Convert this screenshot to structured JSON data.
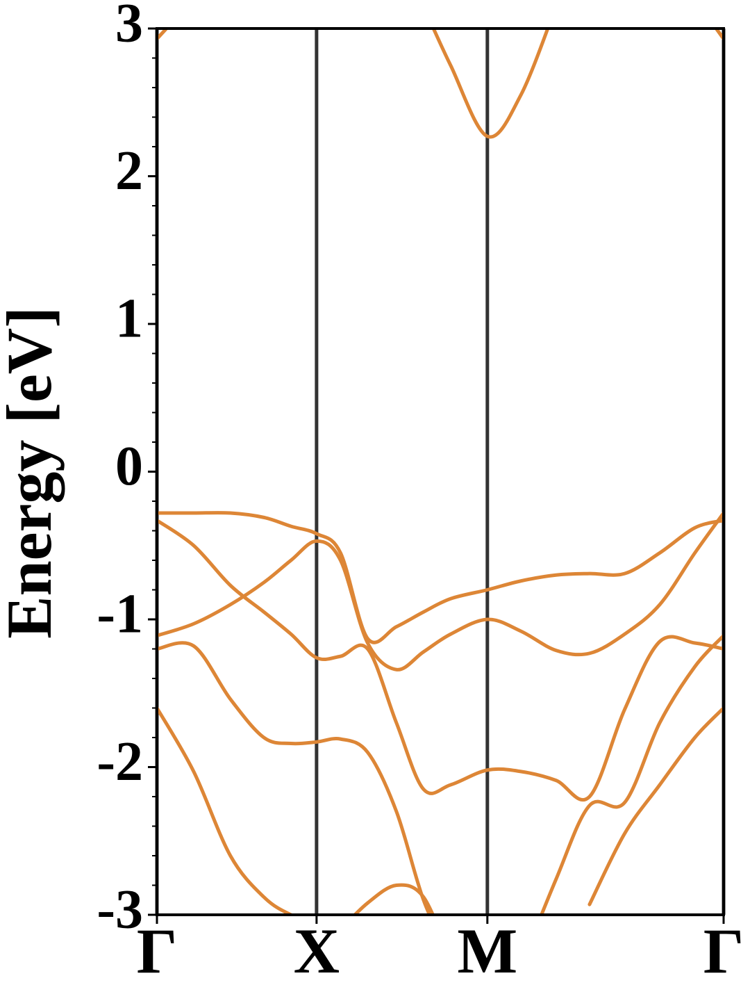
{
  "chart_data": {
    "type": "line",
    "ylabel": "Energy [eV]",
    "x": [
      0,
      0.23,
      0.46,
      0.67,
      0.84,
      1,
      1.15,
      1.32,
      1.5,
      1.67,
      1.84,
      2.07,
      2.28,
      2.5,
      2.71,
      2.93,
      3.15,
      3.37,
      3.55
    ],
    "series": [
      {
        "color": "#dd8636",
        "values": [
          -0.28,
          -0.28,
          -0.28,
          -0.31,
          -0.37,
          -0.42,
          -0.55,
          -1.13,
          -1.05,
          -0.95,
          -0.86,
          -0.8,
          -0.74,
          -0.7,
          -0.69,
          -0.69,
          -0.55,
          -0.38,
          -0.33
        ]
      },
      {
        "color": "#dd8636",
        "values": [
          -0.33,
          -0.5,
          -0.77,
          -0.95,
          -1.1,
          -1.26,
          -1.25,
          -1.2,
          -1.7,
          -2.15,
          -2.12,
          -2.02,
          -2.03,
          -2.09,
          -2.2,
          -1.61,
          -1.15,
          -1.16,
          -1.2
        ]
      },
      {
        "color": "#dd8636",
        "values": [
          -1.11,
          -1.03,
          -0.9,
          -0.75,
          -0.6,
          -0.47,
          -0.6,
          -1.16,
          -1.34,
          -1.22,
          -1.1,
          -1.0,
          -1.08,
          -1.21,
          -1.23,
          -1.1,
          -0.9,
          -0.55,
          -0.28
        ]
      },
      {
        "color": "#dd8636",
        "values": [
          -1.2,
          -1.18,
          -1.54,
          -1.8,
          -1.84,
          -1.83,
          -1.81,
          -1.9,
          -2.3,
          -2.9,
          -3.3,
          null,
          -3.35,
          -2.76,
          -2.26,
          -2.24,
          -1.7,
          -1.32,
          -1.11
        ]
      },
      {
        "color": "#dd8636",
        "values": [
          -1.6,
          -2.03,
          -2.6,
          -2.88,
          -3.0,
          -3.05,
          null,
          null,
          null,
          null,
          null,
          null,
          null,
          null,
          -2.93,
          -2.45,
          -2.12,
          -1.8,
          -1.6
        ]
      },
      {
        "color": "#dd8636",
        "values": [
          null,
          null,
          null,
          null,
          null,
          null,
          -3.1,
          -2.92,
          -2.8,
          -2.88,
          -3.3,
          null,
          null,
          null,
          null,
          null,
          null,
          null,
          null
        ]
      },
      {
        "color": "#dd8636",
        "values": [
          2.93,
          3.2,
          null,
          null,
          null,
          null,
          null,
          null,
          null,
          3.15,
          2.75,
          2.27,
          2.55,
          3.15,
          null,
          null,
          null,
          3.2,
          2.93
        ]
      }
    ],
    "xlim": [
      0,
      3.55
    ],
    "xticks": [
      {
        "value": 0,
        "label": "Γ"
      },
      {
        "value": 1,
        "label": "X"
      },
      {
        "value": 2.07,
        "label": "M"
      },
      {
        "value": 3.55,
        "label": "Γ"
      }
    ],
    "ylim": [
      -3,
      3
    ],
    "yticks": [
      -3,
      -2,
      -1,
      0,
      1,
      2,
      3
    ],
    "yminorticks": [
      -2.8,
      -2.6,
      -2.4,
      -2.2,
      -1.8,
      -1.6,
      -1.4,
      -1.2,
      -0.8,
      -0.6,
      -0.4,
      -0.2,
      0.2,
      0.4,
      0.6,
      0.8,
      1.2,
      1.4,
      1.6,
      1.8,
      2.2,
      2.4,
      2.6,
      2.8
    ],
    "grid": true
  }
}
